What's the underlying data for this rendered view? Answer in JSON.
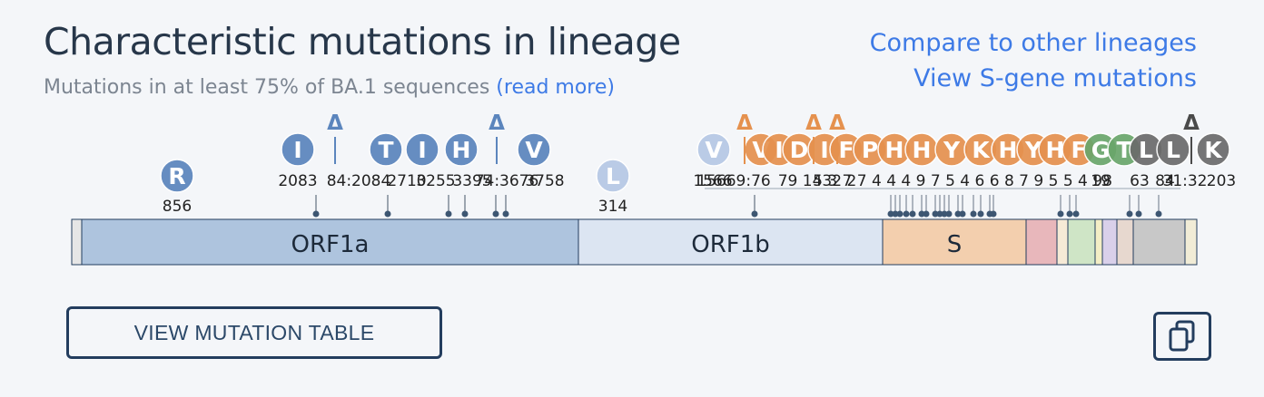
{
  "header": {
    "title": "Characteristic mutations in lineage",
    "subtitle": "Mutations in at least 75% of BA.1 sequences",
    "read_more": "(read more)"
  },
  "links": {
    "compare": "Compare to other lineages",
    "sgene": "View S-gene mutations"
  },
  "genes": [
    {
      "label": "ORF1a",
      "color": "#aec4de"
    },
    {
      "label": "ORF1b",
      "color": "#dce5f2"
    },
    {
      "label": "S",
      "color": "#f3cfae"
    },
    {
      "label": "",
      "color": "#e8b7bb"
    },
    {
      "label": "",
      "color": "#f6ead6"
    },
    {
      "label": "",
      "color": "#cfe5c6"
    },
    {
      "label": "",
      "color": "#f4eec5"
    },
    {
      "label": "",
      "color": "#d9d0ea"
    },
    {
      "label": "",
      "color": "#e7d8cf"
    },
    {
      "label": "",
      "color": "#c8c8c8"
    }
  ],
  "mutations": [
    {
      "letter": "R",
      "pos": "856",
      "gene": "ORF1a"
    },
    {
      "letter": "I",
      "pos": "2083",
      "gene": "ORF1a"
    },
    {
      "letter": "",
      "pos": "3674:3676",
      "deletion": true,
      "gene": "ORF1a"
    },
    {
      "letter": "T",
      "pos": "2710",
      "gene": "ORF1a"
    },
    {
      "letter": "I",
      "pos": "3255",
      "gene": "ORF1a"
    },
    {
      "letter": "H",
      "pos": "3395",
      "gene": "ORF1a"
    },
    {
      "letter": "V",
      "pos": "3758",
      "gene": "ORF1a"
    },
    {
      "letter": "L",
      "pos": "314",
      "gene": "ORF1b"
    },
    {
      "letter": "V",
      "pos": "1566",
      "gene": "ORF1b"
    },
    {
      "letter": "V",
      "pos": "67",
      "gene": "S"
    },
    {
      "letter": "I",
      "pos": "95",
      "gene": "S"
    },
    {
      "letter": "D",
      "pos": "142",
      "gene": "S"
    },
    {
      "letter": "I",
      "pos": "212",
      "gene": "S"
    },
    {
      "letter": "F",
      "pos": "371",
      "gene": "S"
    },
    {
      "letter": "P",
      "pos": "373",
      "gene": "S"
    },
    {
      "letter": "H",
      "pos": "505",
      "gene": "S"
    },
    {
      "letter": "Y",
      "pos": "547",
      "gene": "S"
    },
    {
      "letter": "K",
      "pos": "679",
      "gene": "S"
    },
    {
      "letter": "H",
      "pos": "796",
      "gene": "S"
    },
    {
      "letter": "Y",
      "pos": "954",
      "gene": "S"
    },
    {
      "letter": "H",
      "pos": "969",
      "gene": "S"
    },
    {
      "letter": "F",
      "pos": "981",
      "gene": "S"
    },
    {
      "letter": "G",
      "pos": "19",
      "gene": "E"
    },
    {
      "letter": "T",
      "pos": "63",
      "gene": "M"
    },
    {
      "letter": "L",
      "pos": "3",
      "gene": "M"
    },
    {
      "letter": "K",
      "pos": "203",
      "gene": "N"
    }
  ],
  "labels_visible": [
    "856",
    "2083",
    "2084:2084",
    "2710",
    "3255",
    "3395",
    "3674:3676",
    "3758",
    "314",
    "1566",
    "9:76",
    "19",
    "3",
    "63",
    "84",
    "13",
    "31:32",
    "203",
    "20"
  ],
  "buttons": {
    "table": "VIEW MUTATION TABLE"
  },
  "icons": {
    "copy": "copy-icon",
    "deletion": "delta-icon"
  },
  "colors": {
    "orf1a_mut": "#5b85bd",
    "orf1b_mut": "#b6c8e5",
    "s_mut": "#e5914e",
    "e_mut": "#6aa66b",
    "m_mut": "#6b6b6b",
    "link": "#3d7ae6",
    "border": "#233d5e"
  }
}
